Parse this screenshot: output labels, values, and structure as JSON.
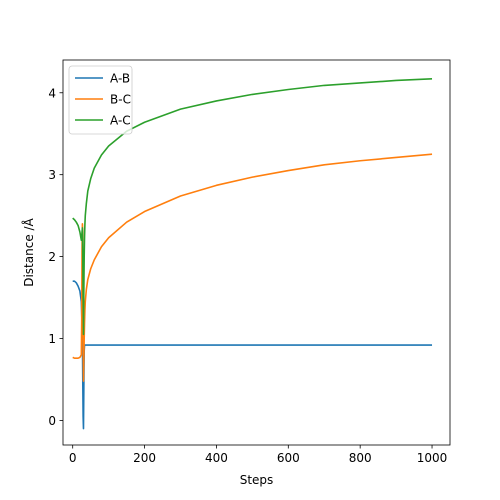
{
  "chart_data": {
    "type": "line",
    "title": "",
    "xlabel": "Steps",
    "ylabel": "Distance /Å",
    "xlim": [
      -27,
      1050
    ],
    "ylim": [
      -0.3,
      4.4
    ],
    "xticks": [
      0,
      200,
      400,
      600,
      800,
      1000
    ],
    "yticks": [
      0,
      1,
      2,
      3,
      4
    ],
    "xtick_labels": [
      "0",
      "200",
      "400",
      "600",
      "800",
      "1000"
    ],
    "ytick_labels": [
      "0",
      "1",
      "2",
      "3",
      "4"
    ],
    "grid": false,
    "legend_position": "top-left",
    "series": [
      {
        "name": "A-B",
        "color": "#1f77b4",
        "x": [
          0,
          5,
          10,
          15,
          20,
          24,
          27,
          28,
          29,
          30,
          31,
          32,
          33,
          35,
          40,
          60,
          100,
          200,
          400,
          600,
          800,
          1000
        ],
        "y": [
          1.7,
          1.7,
          1.68,
          1.64,
          1.58,
          1.45,
          1.0,
          0.5,
          0.05,
          -0.1,
          0.4,
          0.85,
          0.92,
          0.92,
          0.92,
          0.92,
          0.92,
          0.92,
          0.92,
          0.92,
          0.92,
          0.92
        ]
      },
      {
        "name": "B-C",
        "color": "#ff7f0e",
        "x": [
          0,
          5,
          10,
          15,
          20,
          24,
          25,
          26,
          27,
          28,
          29,
          30,
          31,
          32,
          33,
          34,
          35,
          38,
          42,
          50,
          60,
          80,
          100,
          150,
          200,
          300,
          400,
          500,
          600,
          700,
          800,
          900,
          1000
        ],
        "y": [
          0.77,
          0.76,
          0.76,
          0.76,
          0.77,
          0.8,
          1.2,
          2.1,
          2.4,
          2.3,
          1.1,
          0.48,
          0.75,
          1.0,
          1.2,
          1.35,
          1.45,
          1.6,
          1.72,
          1.85,
          1.96,
          2.12,
          2.23,
          2.42,
          2.55,
          2.74,
          2.87,
          2.97,
          3.05,
          3.12,
          3.17,
          3.21,
          3.25
        ]
      },
      {
        "name": "A-C",
        "color": "#2ca02c",
        "x": [
          0,
          5,
          10,
          15,
          20,
          24,
          26,
          27,
          28,
          29,
          30,
          31,
          32,
          33,
          34,
          35,
          38,
          42,
          50,
          60,
          80,
          100,
          150,
          200,
          300,
          400,
          500,
          600,
          700,
          800,
          900,
          1000
        ],
        "y": [
          2.47,
          2.45,
          2.42,
          2.38,
          2.3,
          2.2,
          2.3,
          2.35,
          2.0,
          1.55,
          1.05,
          1.6,
          2.0,
          2.25,
          2.4,
          2.5,
          2.65,
          2.8,
          2.95,
          3.08,
          3.24,
          3.35,
          3.53,
          3.64,
          3.8,
          3.9,
          3.98,
          4.04,
          4.09,
          4.12,
          4.15,
          4.17
        ]
      }
    ]
  }
}
